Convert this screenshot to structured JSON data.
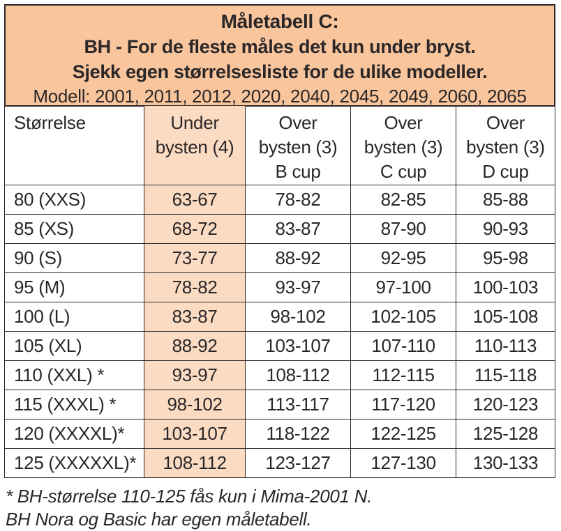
{
  "colors": {
    "header_box_bg": "#f8c59c",
    "highlight_column_bg": "#fbdcc3",
    "border": "#2b2728",
    "text": "#2b2728",
    "page_bg": "#ffffff"
  },
  "header_box": {
    "title": "Måletabell C:",
    "subtitle1": "BH - For de fleste måles det kun under bryst.",
    "subtitle2": "Sjekk egen størrelsesliste for de ulike modeller.",
    "models_line": "Modell: 2001, 2011, 2012, 2020, 2040, 2045, 2049, 2060, 2065"
  },
  "table": {
    "columns": [
      {
        "name": "storrelse",
        "header_lines": [
          "Størrelse"
        ],
        "highlight": false,
        "align": "left"
      },
      {
        "name": "under-bysten",
        "header_lines": [
          "Under",
          "bysten (4)"
        ],
        "highlight": true,
        "align": "center"
      },
      {
        "name": "over-bysten-b",
        "header_lines": [
          "Over",
          "bysten (3)",
          "B cup"
        ],
        "highlight": false,
        "align": "center"
      },
      {
        "name": "over-bysten-c",
        "header_lines": [
          "Over",
          "bysten (3)",
          "C cup"
        ],
        "highlight": false,
        "align": "center"
      },
      {
        "name": "over-bysten-d",
        "header_lines": [
          "Over",
          "bysten (3)",
          "D cup"
        ],
        "highlight": false,
        "align": "center"
      }
    ],
    "rows": [
      [
        "80 (XXS)",
        "63-67",
        "78-82",
        "82-85",
        "85-88"
      ],
      [
        "85 (XS)",
        "68-72",
        "83-87",
        "87-90",
        "90-93"
      ],
      [
        "90 (S)",
        "73-77",
        "88-92",
        "92-95",
        "95-98"
      ],
      [
        "95 (M)",
        "78-82",
        "93-97",
        "97-100",
        "100-103"
      ],
      [
        "100 (L)",
        "83-87",
        "98-102",
        "102-105",
        "105-108"
      ],
      [
        "105 (XL)",
        "88-92",
        "103-107",
        "107-110",
        "110-113"
      ],
      [
        "110 (XXL) *",
        "93-97",
        "108-112",
        "112-115",
        "115-118"
      ],
      [
        "115 (XXXL) *",
        "98-102",
        "113-117",
        "117-120",
        "120-123"
      ],
      [
        "120 (XXXXL)*",
        "103-107",
        "118-122",
        "122-125",
        "125-128"
      ],
      [
        "125 (XXXXXL)*",
        "108-112",
        "123-127",
        "127-130",
        "130-133"
      ]
    ]
  },
  "footnotes": [
    "* BH-størrelse 110-125  fås kun i Mima-2001 N.",
    "BH Nora og Basic har egen måletabell."
  ]
}
